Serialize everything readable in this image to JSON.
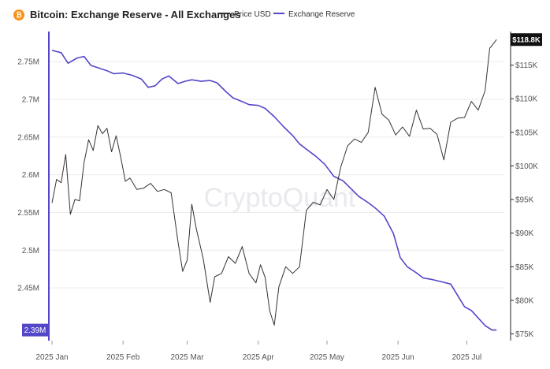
{
  "header": {
    "coin_icon_glyph": "₿",
    "title": "Bitcoin: Exchange Reserve - All Exchanges",
    "legend": [
      {
        "name": "Price USD",
        "color": "#333333"
      },
      {
        "name": "Exchange Reserve",
        "color": "#5346c8"
      }
    ]
  },
  "watermark": "CryptoQuant",
  "chart_data": {
    "type": "line",
    "title": "Bitcoin: Exchange Reserve - All Exchanges",
    "x_ticks": [
      "2025 Jan",
      "2025 Feb",
      "2025 Mar",
      "2025 Apr",
      "2025 May",
      "2025 Jun",
      "2025 Jul"
    ],
    "left_axis": {
      "ticks": [
        "2.75M",
        "2.7M",
        "2.65M",
        "2.6M",
        "2.55M",
        "2.5M",
        "2.45M"
      ],
      "ylim": [
        2.38,
        2.79
      ],
      "current_badge": "2.39M"
    },
    "right_axis": {
      "ticks": [
        "$115K",
        "$110K",
        "$105K",
        "$100K",
        "$95K",
        "$90K",
        "$85K",
        "$80K",
        "$75K"
      ],
      "ylim": [
        74000,
        120000
      ],
      "current_badge": "$118.8K"
    },
    "grid": "horizontal",
    "legend_position": "top",
    "series": [
      {
        "name": "Exchange Reserve",
        "axis": "left",
        "color": "#5346c8",
        "x": [
          "2025-01-01",
          "2025-01-05",
          "2025-01-08",
          "2025-01-12",
          "2025-01-15",
          "2025-01-18",
          "2025-01-21",
          "2025-01-25",
          "2025-01-28",
          "2025-02-01",
          "2025-02-05",
          "2025-02-09",
          "2025-02-12",
          "2025-02-15",
          "2025-02-18",
          "2025-02-21",
          "2025-02-25",
          "2025-02-28",
          "2025-03-03",
          "2025-03-07",
          "2025-03-11",
          "2025-03-14",
          "2025-03-18",
          "2025-03-21",
          "2025-03-25",
          "2025-03-28",
          "2025-04-01",
          "2025-04-04",
          "2025-04-08",
          "2025-04-12",
          "2025-04-16",
          "2025-04-19",
          "2025-04-22",
          "2025-04-26",
          "2025-04-30",
          "2025-05-04",
          "2025-05-08",
          "2025-05-12",
          "2025-05-15",
          "2025-05-19",
          "2025-05-22",
          "2025-05-26",
          "2025-05-30",
          "2025-06-02",
          "2025-06-05",
          "2025-06-09",
          "2025-06-12",
          "2025-06-16",
          "2025-06-20",
          "2025-06-24",
          "2025-06-27",
          "2025-06-30",
          "2025-07-03",
          "2025-07-06",
          "2025-07-09",
          "2025-07-12",
          "2025-07-14"
        ],
        "values": [
          2.765,
          2.762,
          2.748,
          2.755,
          2.757,
          2.745,
          2.742,
          2.738,
          2.734,
          2.735,
          2.732,
          2.727,
          2.716,
          2.718,
          2.727,
          2.731,
          2.721,
          2.724,
          2.726,
          2.724,
          2.725,
          2.722,
          2.71,
          2.702,
          2.697,
          2.693,
          2.692,
          2.688,
          2.677,
          2.664,
          2.652,
          2.641,
          2.634,
          2.625,
          2.614,
          2.598,
          2.592,
          2.58,
          2.571,
          2.563,
          2.556,
          2.545,
          2.522,
          2.49,
          2.478,
          2.47,
          2.463,
          2.461,
          2.458,
          2.455,
          2.44,
          2.425,
          2.42,
          2.41,
          2.4,
          2.394,
          2.394
        ]
      },
      {
        "name": "Price USD",
        "axis": "right",
        "color": "#333333",
        "x": [
          "2025-01-01",
          "2025-01-03",
          "2025-01-05",
          "2025-01-07",
          "2025-01-09",
          "2025-01-11",
          "2025-01-13",
          "2025-01-15",
          "2025-01-17",
          "2025-01-19",
          "2025-01-21",
          "2025-01-23",
          "2025-01-25",
          "2025-01-27",
          "2025-01-29",
          "2025-01-31",
          "2025-02-02",
          "2025-02-04",
          "2025-02-07",
          "2025-02-10",
          "2025-02-13",
          "2025-02-16",
          "2025-02-19",
          "2025-02-22",
          "2025-02-25",
          "2025-02-27",
          "2025-03-01",
          "2025-03-03",
          "2025-03-05",
          "2025-03-08",
          "2025-03-11",
          "2025-03-13",
          "2025-03-16",
          "2025-03-19",
          "2025-03-22",
          "2025-03-25",
          "2025-03-28",
          "2025-03-31",
          "2025-04-02",
          "2025-04-04",
          "2025-04-06",
          "2025-04-08",
          "2025-04-10",
          "2025-04-13",
          "2025-04-16",
          "2025-04-19",
          "2025-04-22",
          "2025-04-25",
          "2025-04-28",
          "2025-05-01",
          "2025-05-04",
          "2025-05-07",
          "2025-05-10",
          "2025-05-13",
          "2025-05-16",
          "2025-05-19",
          "2025-05-22",
          "2025-05-25",
          "2025-05-28",
          "2025-05-31",
          "2025-06-03",
          "2025-06-06",
          "2025-06-09",
          "2025-06-12",
          "2025-06-15",
          "2025-06-18",
          "2025-06-21",
          "2025-06-24",
          "2025-06-27",
          "2025-06-30",
          "2025-07-03",
          "2025-07-06",
          "2025-07-09",
          "2025-07-11",
          "2025-07-14"
        ],
        "values": [
          94500,
          98000,
          97500,
          101700,
          92800,
          95000,
          94800,
          100500,
          103900,
          102300,
          106000,
          104800,
          105600,
          102100,
          104500,
          101300,
          97700,
          98200,
          96500,
          96700,
          97400,
          96200,
          96500,
          96000,
          88700,
          84300,
          86000,
          94300,
          90600,
          86200,
          79700,
          83500,
          84000,
          86500,
          85500,
          88000,
          84000,
          82600,
          85300,
          83400,
          78400,
          76300,
          82000,
          85000,
          84000,
          85000,
          93400,
          94600,
          94200,
          96500,
          95000,
          99800,
          103000,
          104000,
          103500,
          105000,
          111700,
          107700,
          106800,
          104600,
          105800,
          104400,
          108300,
          105500,
          105600,
          104700,
          100900,
          106500,
          107100,
          107200,
          109600,
          108300,
          111200,
          117500,
          118800
        ]
      }
    ]
  }
}
